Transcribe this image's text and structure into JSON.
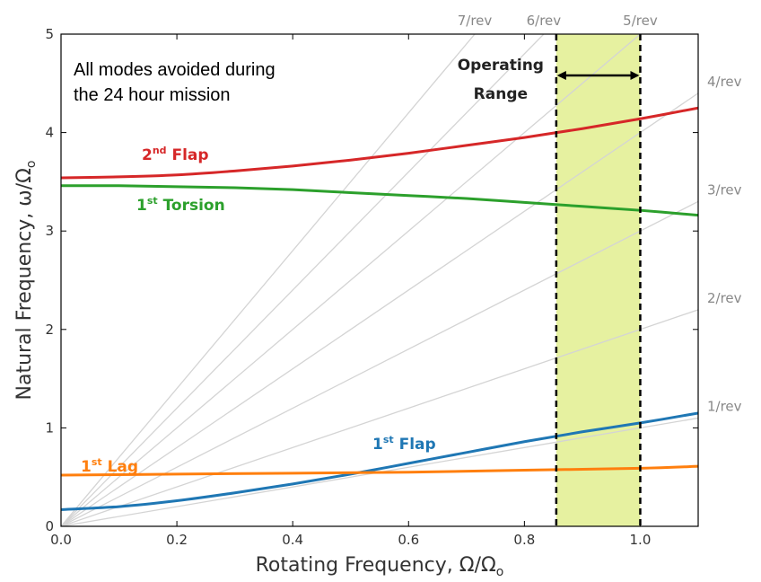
{
  "chart_data": {
    "type": "line",
    "title": "",
    "xlabel": "Rotating Frequency, Ω/Ω",
    "xlabel_sub": "o",
    "ylabel": "Natural Frequency, ω/Ω",
    "ylabel_sub": "o",
    "xlim": [
      0,
      1.1
    ],
    "ylim": [
      0,
      5
    ],
    "xticks": [
      "0.0",
      "0.2",
      "0.4",
      "0.6",
      "0.8",
      "1.0"
    ],
    "yticks": [
      "0",
      "1",
      "2",
      "3",
      "4",
      "5"
    ],
    "grid": false,
    "series": [
      {
        "name": "Flap",
        "ordinal": "1",
        "sup": "st",
        "color": "#1f77b4",
        "x": [
          0,
          0.1,
          0.2,
          0.3,
          0.4,
          0.5,
          0.6,
          0.7,
          0.8,
          0.9,
          1.0,
          1.1
        ],
        "y": [
          0.17,
          0.2,
          0.26,
          0.34,
          0.43,
          0.53,
          0.64,
          0.75,
          0.86,
          0.96,
          1.05,
          1.15
        ]
      },
      {
        "name": "Lag",
        "ordinal": "1",
        "sup": "st",
        "color": "#ff7f0e",
        "x": [
          0,
          0.2,
          0.4,
          0.6,
          0.8,
          1.0,
          1.1
        ],
        "y": [
          0.52,
          0.53,
          0.54,
          0.55,
          0.57,
          0.59,
          0.61
        ]
      },
      {
        "name": "Torsion",
        "ordinal": "1",
        "sup": "st",
        "color": "#2ca02c",
        "x": [
          0,
          0.1,
          0.2,
          0.3,
          0.4,
          0.5,
          0.6,
          0.7,
          0.8,
          0.9,
          1.0,
          1.1
        ],
        "y": [
          3.46,
          3.46,
          3.45,
          3.44,
          3.42,
          3.39,
          3.36,
          3.33,
          3.29,
          3.25,
          3.21,
          3.16
        ]
      },
      {
        "name": "Flap",
        "ordinal": "2",
        "sup": "nd",
        "color": "#d62728",
        "x": [
          0,
          0.1,
          0.2,
          0.3,
          0.4,
          0.5,
          0.6,
          0.7,
          0.8,
          0.9,
          1.0,
          1.1
        ],
        "y": [
          3.54,
          3.55,
          3.57,
          3.61,
          3.66,
          3.72,
          3.79,
          3.87,
          3.95,
          4.04,
          4.14,
          4.25
        ]
      }
    ],
    "rev_lines": [
      {
        "n": 1,
        "label": "1/rev"
      },
      {
        "n": 2,
        "label": "2/rev"
      },
      {
        "n": 3,
        "label": "3/rev"
      },
      {
        "n": 4,
        "label": "4/rev"
      },
      {
        "n": 5,
        "label": "5/rev"
      },
      {
        "n": 6,
        "label": "6/rev"
      },
      {
        "n": 7,
        "label": "7/rev"
      }
    ],
    "rev_line_color": "#d4d4d4",
    "operating_range": {
      "x": [
        0.855,
        1.0
      ],
      "label_line1": "Operating",
      "label_line2": "Range",
      "color": "#e6f1a0"
    },
    "annotation": {
      "line1": "All modes avoided during",
      "line2": "the 24 hour mission"
    }
  }
}
